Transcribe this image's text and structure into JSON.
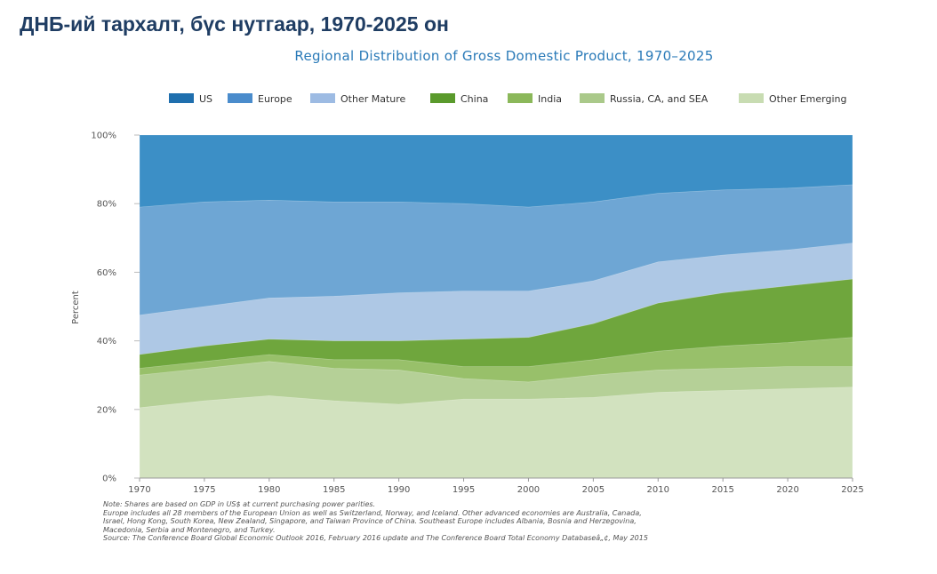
{
  "slide": {
    "title": "ДНБ-ий тархалт, бүс нутгаар, 1970-2025 он"
  },
  "chart_data": {
    "type": "area",
    "stacked": true,
    "title": "Regional Distribution of Gross Domestic Product, 1970–2025",
    "ylabel": "Percent",
    "xlabel": "",
    "xlim": [
      1970,
      2025
    ],
    "ylim": [
      0,
      100
    ],
    "x_ticks": [
      "1970",
      "1975",
      "1980",
      "1985",
      "1990",
      "1995",
      "2000",
      "2005",
      "2010",
      "2015",
      "2020",
      "2025"
    ],
    "y_ticks": [
      "0%",
      "20%",
      "40%",
      "60%",
      "80%",
      "100%"
    ],
    "legend_position": "top",
    "grid": false,
    "x": [
      1970,
      1975,
      1980,
      1985,
      1990,
      1995,
      2000,
      2005,
      2010,
      2015,
      2020,
      2025
    ],
    "cumulative_top": [
      {
        "name": "Other Emerging",
        "color": "#d2e2bf",
        "values": [
          20.5,
          22.5,
          24,
          22.5,
          21.5,
          23,
          23,
          23.5,
          25,
          25.5,
          26,
          26.5
        ]
      },
      {
        "name": "Russia, CA, and SEA",
        "color": "#b5d097",
        "values": [
          30,
          32,
          34,
          32,
          31.5,
          29,
          28,
          30,
          31.5,
          32,
          32.5,
          32.5
        ]
      },
      {
        "name": "India",
        "color": "#98c06a",
        "values": [
          32,
          34,
          36,
          34.5,
          34.5,
          32.5,
          32.5,
          34.5,
          37,
          38.5,
          39.5,
          41
        ]
      },
      {
        "name": "China",
        "color": "#6fa63d",
        "values": [
          36,
          38.5,
          40.5,
          40,
          40,
          40.5,
          41,
          45,
          51,
          54,
          56,
          58
        ]
      },
      {
        "name": "Other Mature",
        "color": "#aec8e5",
        "values": [
          47.5,
          50,
          52.5,
          53,
          54,
          54.5,
          54.5,
          57.5,
          63,
          65,
          66.5,
          68.5
        ]
      },
      {
        "name": "Europe",
        "color": "#6ea6d4",
        "values": [
          79,
          80.5,
          81,
          80.5,
          80.5,
          80,
          79,
          80.5,
          83,
          84,
          84.5,
          85.5
        ]
      },
      {
        "name": "US",
        "color": "#3c8fc6",
        "values": [
          100,
          100,
          100,
          100,
          100,
          100,
          100,
          100,
          100,
          100,
          100,
          100
        ]
      }
    ],
    "legend": [
      {
        "name": "US",
        "color": "#1f6fae"
      },
      {
        "name": "Europe",
        "color": "#4a8ccc"
      },
      {
        "name": "Other Mature",
        "color": "#9dbbe3"
      },
      {
        "name": "China",
        "color": "#5a9a2c"
      },
      {
        "name": "India",
        "color": "#8bb85a"
      },
      {
        "name": "Russia, CA, and SEA",
        "color": "#aac98a"
      },
      {
        "name": "Other Emerging",
        "color": "#c8dcb2"
      }
    ]
  },
  "notes": [
    "Note: Shares are based on GDP in US$ at current purchasing power parities.",
    "Europe includes all 28 members of the European Union as well as Switzerland, Norway, and Iceland. Other advanced economies are Australia, Canada,",
    "Israel, Hong Kong, South Korea, New Zealand, Singapore, and Taiwan Province of China. Southeast Europe includes Albania, Bosnia and Herzegovina,",
    "Macedonia, Serbia and Montenegro, and Turkey.",
    "Source: The Conference Board Global Economic Outlook 2016, February 2016 update and The Conference Board Total Economy Databaseâ„¢, May 2015"
  ]
}
